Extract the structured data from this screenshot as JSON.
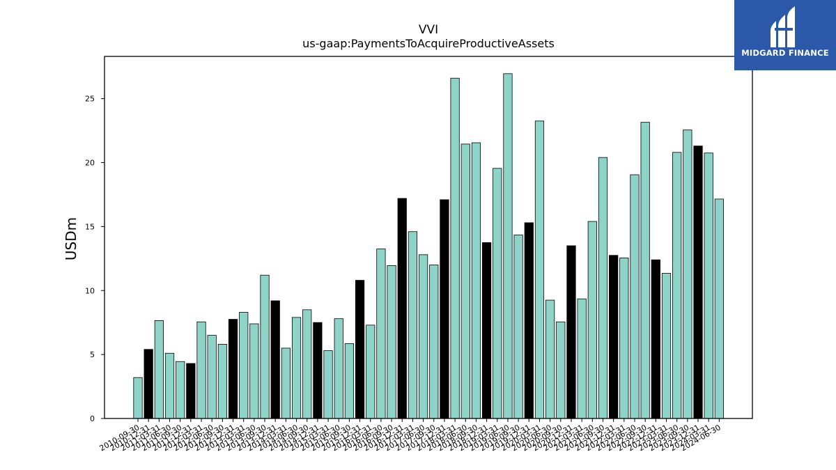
{
  "chart_data": {
    "type": "bar",
    "title": "VVI",
    "subtitle": "us-gaap:PaymentsToAcquireProductiveAssets",
    "xlabel": "",
    "ylabel": "USDm",
    "ylim": [
      0,
      28.3
    ],
    "yticks": [
      0,
      5,
      10,
      15,
      20,
      25
    ],
    "grid": false,
    "colors": {
      "quarter": "#8dd3c7",
      "fiscal_year_end": "#000000",
      "edge": "#000000"
    },
    "categories": [
      "2010-09-30",
      "2010-12-31",
      "2011-03-31",
      "2011-06-30",
      "2011-09-30",
      "2011-12-31",
      "2012-03-31",
      "2012-06-30",
      "2012-09-30",
      "2012-12-31",
      "2013-03-31",
      "2013-06-30",
      "2013-09-30",
      "2013-12-31",
      "2014-03-31",
      "2014-06-30",
      "2014-09-30",
      "2014-12-31",
      "2015-03-31",
      "2015-06-30",
      "2015-09-30",
      "2015-12-31",
      "2016-03-31",
      "2016-06-30",
      "2016-09-30",
      "2016-12-31",
      "2017-03-31",
      "2017-06-30",
      "2017-09-30",
      "2017-12-31",
      "2018-03-31",
      "2018-06-30",
      "2018-09-30",
      "2018-12-31",
      "2019-03-31",
      "2019-06-30",
      "2019-09-30",
      "2019-12-31",
      "2020-03-31",
      "2020-06-30",
      "2020-09-30",
      "2020-12-31",
      "2021-03-31",
      "2021-06-30",
      "2021-09-30",
      "2021-12-31",
      "2022-03-31",
      "2022-06-30",
      "2022-09-30",
      "2022-12-31",
      "2023-03-31",
      "2023-06-30",
      "2023-09-30",
      "2023-12-31",
      "2024-03-31",
      "2024-06-30"
    ],
    "values": [
      3.2,
      5.4,
      7.65,
      5.1,
      4.45,
      4.3,
      7.55,
      6.5,
      5.8,
      7.75,
      8.3,
      7.4,
      11.2,
      9.2,
      5.5,
      7.9,
      8.5,
      7.5,
      5.3,
      7.8,
      5.85,
      10.8,
      7.3,
      13.25,
      11.95,
      17.2,
      14.6,
      12.8,
      12.0,
      17.1,
      26.6,
      21.45,
      21.55,
      13.75,
      19.55,
      26.95,
      14.35,
      15.3,
      23.25,
      9.25,
      7.55,
      13.5,
      9.35,
      15.4,
      20.4,
      12.75,
      12.55,
      19.05,
      23.15,
      12.4,
      11.35,
      20.8,
      22.55,
      21.3,
      20.75,
      17.15
    ],
    "fiscal_year_end": [
      false,
      true,
      false,
      false,
      false,
      true,
      false,
      false,
      false,
      true,
      false,
      false,
      false,
      true,
      false,
      false,
      false,
      true,
      false,
      false,
      false,
      true,
      false,
      false,
      false,
      true,
      false,
      false,
      false,
      true,
      false,
      false,
      false,
      true,
      false,
      false,
      false,
      true,
      false,
      false,
      false,
      true,
      false,
      false,
      false,
      true,
      false,
      false,
      false,
      true,
      false,
      false,
      false,
      true,
      false,
      false
    ]
  },
  "logo": {
    "text": "MIDGARD FINANCE",
    "color": "#2b58a8"
  }
}
